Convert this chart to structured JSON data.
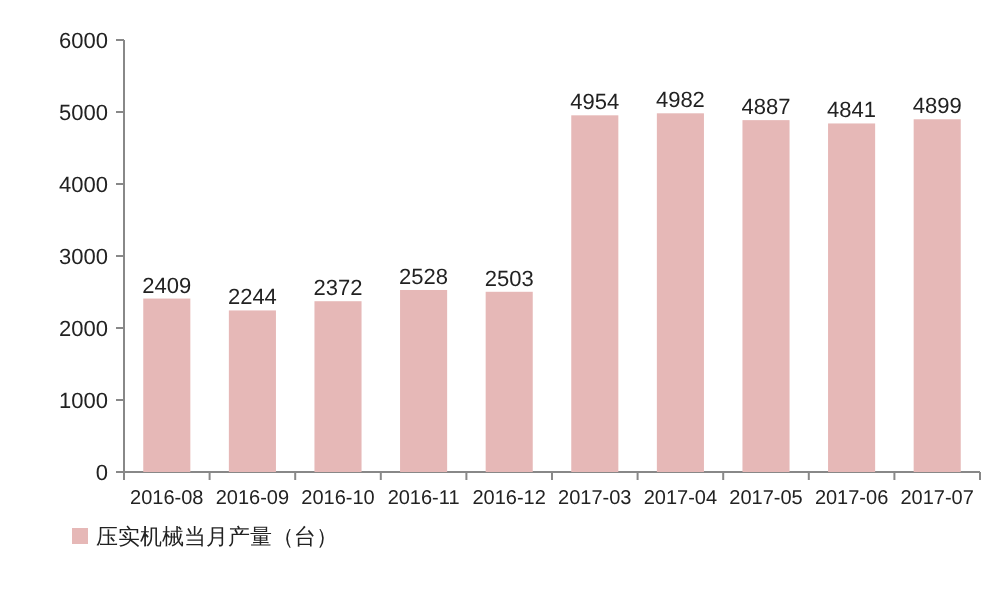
{
  "chart_data": {
    "type": "bar",
    "categories": [
      "2016-08",
      "2016-09",
      "2016-10",
      "2016-11",
      "2016-12",
      "2017-03",
      "2017-04",
      "2017-05",
      "2017-06",
      "2017-07"
    ],
    "series": [
      {
        "name": "压实机械当月产量（台）",
        "color": "#e6b8b7",
        "values": [
          2409,
          2244,
          2372,
          2528,
          2503,
          4954,
          4982,
          4887,
          4841,
          4899
        ]
      }
    ],
    "ylim": [
      0,
      6000
    ],
    "yticks": [
      0,
      1000,
      2000,
      3000,
      4000,
      5000,
      6000
    ],
    "data_labels": true,
    "legend": "bottom",
    "grid": false
  }
}
